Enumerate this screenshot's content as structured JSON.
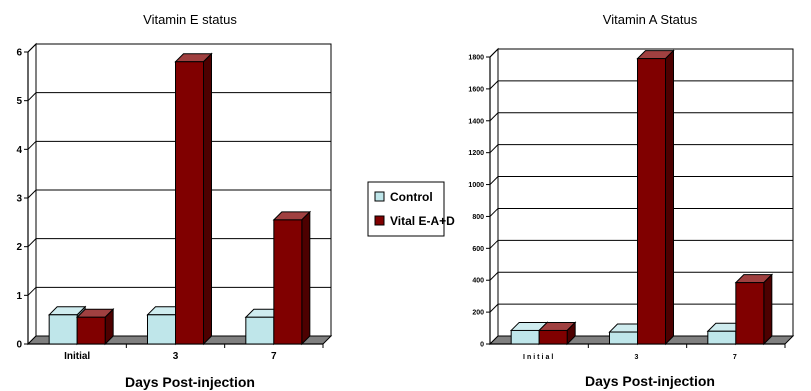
{
  "legend": {
    "items": [
      {
        "label": "Control",
        "color": "#bfe6ea"
      },
      {
        "label": "Vital E-A+D",
        "color": "#800000"
      }
    ]
  },
  "chart_data": [
    {
      "type": "bar",
      "title": "Vitamin E status",
      "xlabel": "Days Post-injection",
      "ylabel": "",
      "categories": [
        "Initial",
        "3",
        "7"
      ],
      "ylim": [
        0,
        6
      ],
      "yticks": [
        0,
        1,
        2,
        3,
        4,
        5,
        6
      ],
      "grid": true,
      "series": [
        {
          "name": "Control",
          "color": "#bfe6ea",
          "values": [
            0.6,
            0.6,
            0.55
          ]
        },
        {
          "name": "Vital E-A+D",
          "color": "#800000",
          "values": [
            0.55,
            5.8,
            2.55
          ]
        }
      ]
    },
    {
      "type": "bar",
      "title": "Vitamin A Status",
      "xlabel": "Days Post-injection",
      "ylabel": "",
      "categories": [
        "Initial",
        "3",
        "7"
      ],
      "ylim": [
        0,
        1800
      ],
      "yticks": [
        0,
        200,
        400,
        600,
        800,
        1000,
        1200,
        1400,
        1600,
        1800
      ],
      "grid": true,
      "series": [
        {
          "name": "Control",
          "color": "#bfe6ea",
          "values": [
            85,
            75,
            80
          ]
        },
        {
          "name": "Vital E-A+D",
          "color": "#800000",
          "values": [
            85,
            1790,
            385
          ]
        }
      ]
    }
  ]
}
